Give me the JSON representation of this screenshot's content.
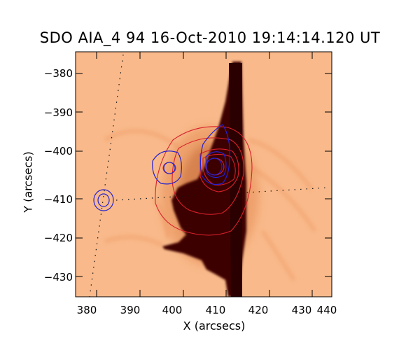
{
  "title": "SDO AIA_4 94 16-Oct-2010 19:14:14.120 UT",
  "axes": {
    "xlabel": "X (arcsecs)",
    "ylabel": "Y (arcsecs)",
    "xticks": [
      "380",
      "390",
      "400",
      "410",
      "420",
      "430",
      "440"
    ],
    "yticks": [
      "−380",
      "−390",
      "−400",
      "−410",
      "−420",
      "−430"
    ],
    "xlim": [
      380,
      440
    ],
    "ylim": [
      -435,
      -372
    ]
  },
  "colors": {
    "background_orange": "#f9b98a",
    "dark_core": "#3d0400",
    "red_contours": "#d8202a",
    "blue_contours": "#2222d0"
  }
}
